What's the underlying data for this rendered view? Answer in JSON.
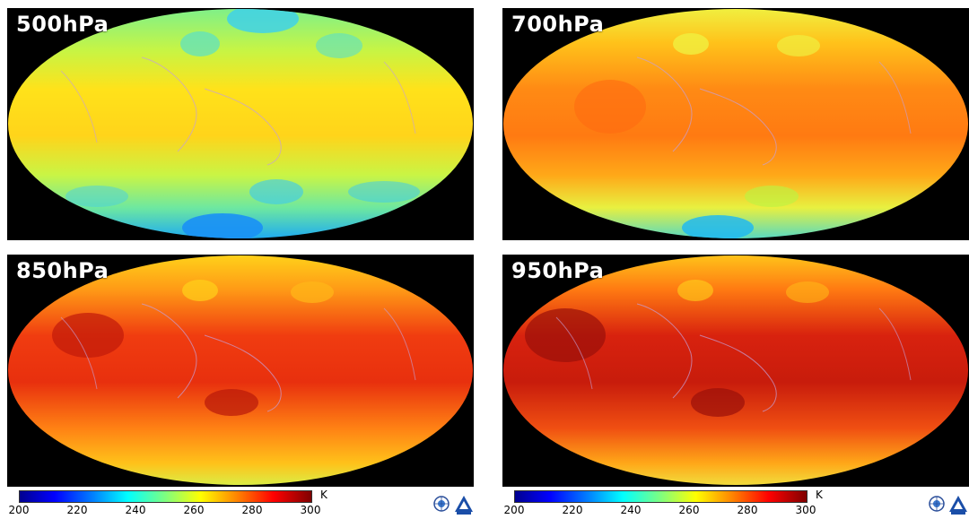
{
  "panels": [
    {
      "label": "500hPa",
      "palette": [
        "#ffd21a",
        "#f5e61e",
        "#b9f542",
        "#58e8b0",
        "#1ab6f5"
      ]
    },
    {
      "label": "700hPa",
      "palette": [
        "#ff6a10",
        "#ff8a14",
        "#ffc21a",
        "#e8f040",
        "#1ab6f5"
      ]
    },
    {
      "label": "850hPa",
      "palette": [
        "#d51e0a",
        "#f03c10",
        "#ff8214",
        "#ffd21a",
        "#c0f048"
      ]
    },
    {
      "label": "950hPa",
      "palette": [
        "#b7140a",
        "#e02810",
        "#ff6a12",
        "#ffc41a",
        "#f0f040"
      ]
    }
  ],
  "colorbar": {
    "unit": "K",
    "ticks": [
      "200",
      "220",
      "240",
      "260",
      "280",
      "300"
    ],
    "range": [
      200,
      300
    ]
  },
  "logos": [
    "globe-logo-icon",
    "nsmc-logo-icon"
  ]
}
